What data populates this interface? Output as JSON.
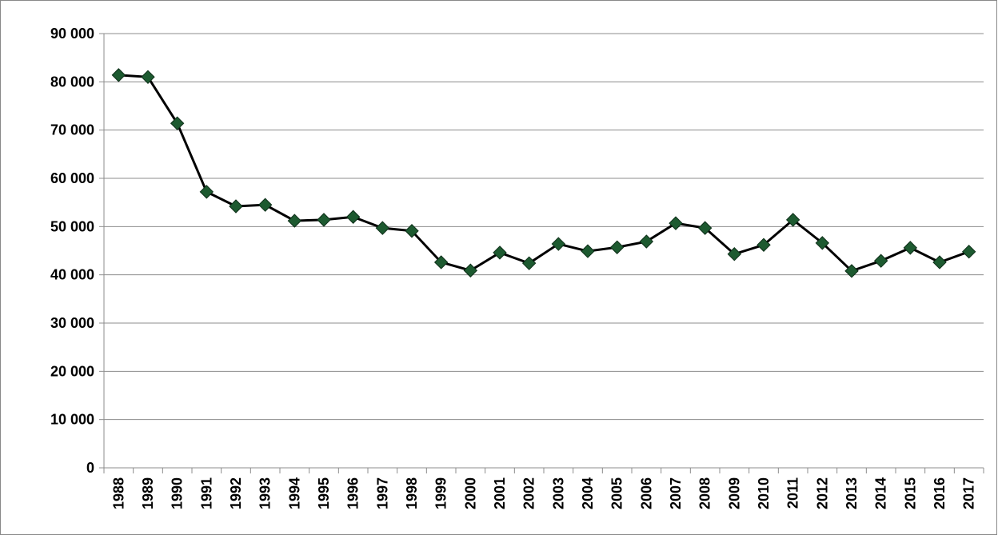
{
  "chart_data": {
    "type": "line",
    "categories": [
      "1988",
      "1989",
      "1990",
      "1991",
      "1992",
      "1993",
      "1994",
      "1995",
      "1996",
      "1997",
      "1998",
      "1999",
      "2000",
      "2001",
      "2002",
      "2003",
      "2004",
      "2005",
      "2006",
      "2007",
      "2008",
      "2009",
      "2010",
      "2011",
      "2012",
      "2013",
      "2014",
      "2015",
      "2016",
      "2017"
    ],
    "series": [
      {
        "color": "#1d5a30",
        "values": [
          81400,
          81000,
          71400,
          57200,
          54200,
          54500,
          51200,
          51400,
          52000,
          49700,
          49100,
          42600,
          40900,
          44600,
          42400,
          46400,
          44900,
          45700,
          46900,
          50700,
          49700,
          44300,
          46200,
          51400,
          46600,
          40800,
          42900,
          45600,
          42600,
          44800
        ]
      }
    ],
    "ylim": [
      0,
      90000
    ],
    "yticks": [
      0,
      {
        "value": 10000,
        "label": "10 000"
      },
      {
        "value": 20000,
        "label": "20 000"
      },
      {
        "value": 30000,
        "label": "30 000"
      },
      {
        "value": 40000,
        "label": "40 000"
      },
      {
        "value": 50000,
        "label": "50 000"
      },
      {
        "value": 60000,
        "label": "60 000"
      },
      {
        "value": 70000,
        "label": "70 000"
      },
      {
        "value": 80000,
        "label": "80 000"
      },
      {
        "value": 90000,
        "label": "90 000"
      }
    ],
    "grid": true
  }
}
